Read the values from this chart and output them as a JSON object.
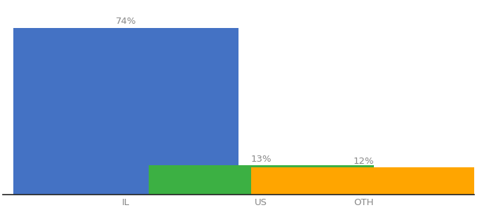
{
  "categories": [
    "IL",
    "US",
    "OTH"
  ],
  "values": [
    74,
    13,
    12
  ],
  "bar_colors": [
    "#4472C4",
    "#3CB043",
    "#FFA500"
  ],
  "label_color": "#888888",
  "value_labels": [
    "74%",
    "13%",
    "12%"
  ],
  "background_color": "#ffffff",
  "ylim": [
    0,
    85
  ],
  "bar_width": 0.55,
  "label_fontsize": 9.5,
  "tick_fontsize": 9.5,
  "x_positions": [
    0.25,
    0.58,
    0.83
  ]
}
